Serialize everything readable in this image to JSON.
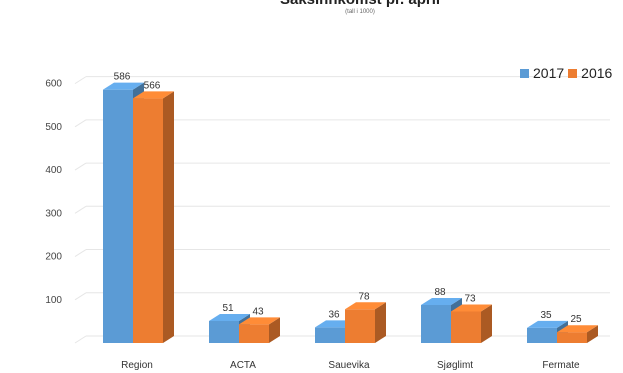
{
  "chart_data": {
    "type": "bar",
    "title": "Saksinnkomst pr. april",
    "subtitle": "(tall i 1000)",
    "categories": [
      "Region",
      "ACTA",
      "Sauevika",
      "Sjøglimt",
      "Fermate"
    ],
    "series": [
      {
        "name": "2017",
        "values": [
          586,
          51,
          36,
          88,
          35
        ],
        "color": "#5b9bd5"
      },
      {
        "name": "2016",
        "values": [
          566,
          43,
          78,
          73,
          25
        ],
        "color": "#ed7d31"
      }
    ],
    "yticks": [
      "",
      "100",
      "200",
      "300",
      "400",
      "500",
      "600"
    ],
    "ylim": [
      0,
      650
    ],
    "grid": true,
    "legend": "top-right"
  }
}
